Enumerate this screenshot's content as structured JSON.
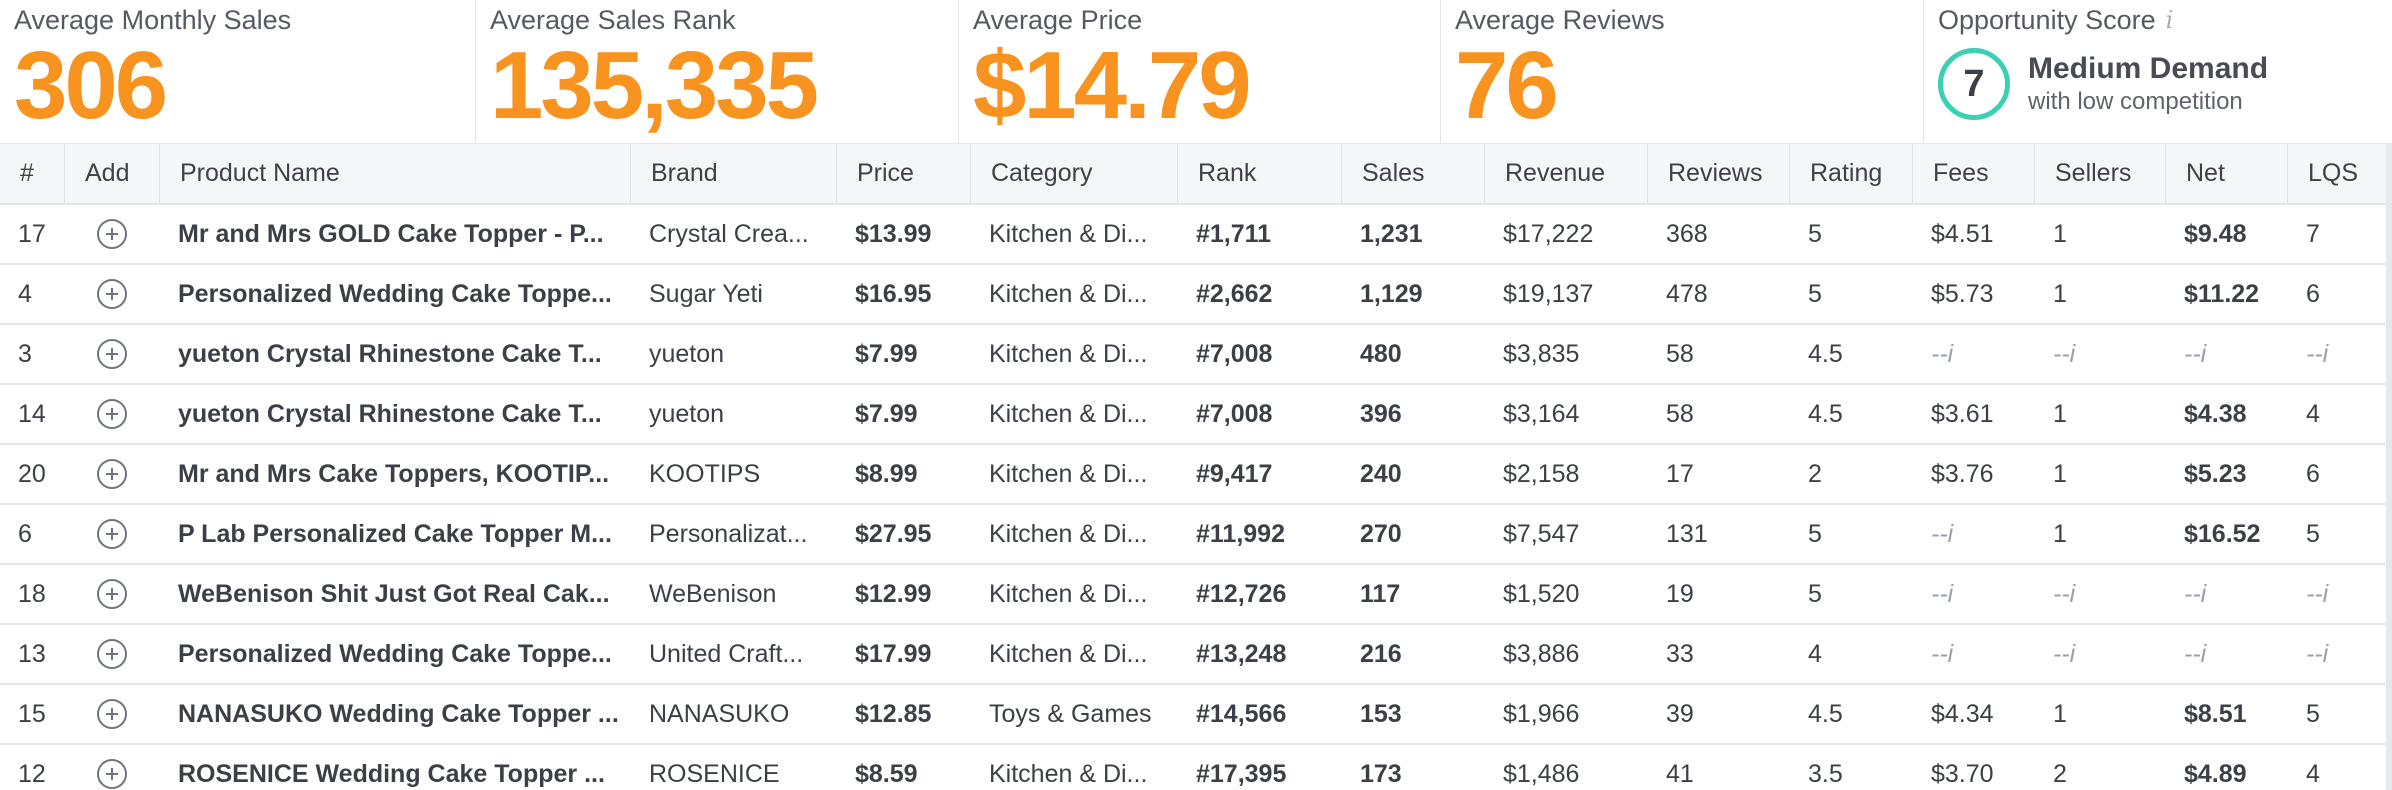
{
  "stats": {
    "avg_monthly_sales": {
      "label": "Average Monthly Sales",
      "value": "306"
    },
    "avg_sales_rank": {
      "label": "Average Sales Rank",
      "value": "135,335"
    },
    "avg_price": {
      "label": "Average Price",
      "value": "$14.79"
    },
    "avg_reviews": {
      "label": "Average Reviews",
      "value": "76"
    },
    "opportunity": {
      "label": "Opportunity Score",
      "info": "i",
      "score": "7",
      "demand": "Medium Demand",
      "competition": "with low competition",
      "ring_color": "#3bcfb4"
    }
  },
  "colors": {
    "accent": "#f7931e"
  },
  "icons": {
    "add": "plus-circle-icon",
    "info": "info-icon"
  },
  "table": {
    "headers": [
      "#",
      "Add",
      "Product Name",
      "Brand",
      "Price",
      "Category",
      "Rank",
      "Sales",
      "Revenue",
      "Reviews",
      "Rating",
      "Fees",
      "Sellers",
      "Net",
      "LQS"
    ],
    "rows": [
      {
        "num": "17",
        "name": "Mr and Mrs GOLD Cake Topper - P...",
        "brand": "Crystal Crea...",
        "price": "$13.99",
        "category": "Kitchen & Di...",
        "rank": "#1,711",
        "sales": "1,231",
        "revenue": "$17,222",
        "reviews": "368",
        "rating": "5",
        "fees": "$4.51",
        "sellers": "1",
        "net": "$9.48",
        "lqs": "7"
      },
      {
        "num": "4",
        "name": "Personalized Wedding Cake Toppe...",
        "brand": "Sugar Yeti",
        "price": "$16.95",
        "category": "Kitchen & Di...",
        "rank": "#2,662",
        "sales": "1,129",
        "revenue": "$19,137",
        "reviews": "478",
        "rating": "5",
        "fees": "$5.73",
        "sellers": "1",
        "net": "$11.22",
        "lqs": "6"
      },
      {
        "num": "3",
        "name": "yueton Crystal Rhinestone Cake T...",
        "brand": "yueton",
        "price": "$7.99",
        "category": "Kitchen & Di...",
        "rank": "#7,008",
        "sales": "480",
        "revenue": "$3,835",
        "reviews": "58",
        "rating": "4.5",
        "fees": "--i",
        "sellers": "--i",
        "net": "--i",
        "lqs": "--i"
      },
      {
        "num": "14",
        "name": "yueton Crystal Rhinestone Cake T...",
        "brand": "yueton",
        "price": "$7.99",
        "category": "Kitchen & Di...",
        "rank": "#7,008",
        "sales": "396",
        "revenue": "$3,164",
        "reviews": "58",
        "rating": "4.5",
        "fees": "$3.61",
        "sellers": "1",
        "net": "$4.38",
        "lqs": "4"
      },
      {
        "num": "20",
        "name": "Mr and Mrs Cake Toppers, KOOTIP...",
        "brand": "KOOTIPS",
        "price": "$8.99",
        "category": "Kitchen & Di...",
        "rank": "#9,417",
        "sales": "240",
        "revenue": "$2,158",
        "reviews": "17",
        "rating": "2",
        "fees": "$3.76",
        "sellers": "1",
        "net": "$5.23",
        "lqs": "6"
      },
      {
        "num": "6",
        "name": "P Lab Personalized Cake Topper M...",
        "brand": "Personalizat...",
        "price": "$27.95",
        "category": "Kitchen & Di...",
        "rank": "#11,992",
        "sales": "270",
        "revenue": "$7,547",
        "reviews": "131",
        "rating": "5",
        "fees": "--i",
        "sellers": "1",
        "net": "$16.52",
        "lqs": "5"
      },
      {
        "num": "18",
        "name": "WeBenison Shit Just Got Real Cak...",
        "brand": "WeBenison",
        "price": "$12.99",
        "category": "Kitchen & Di...",
        "rank": "#12,726",
        "sales": "117",
        "revenue": "$1,520",
        "reviews": "19",
        "rating": "5",
        "fees": "--i",
        "sellers": "--i",
        "net": "--i",
        "lqs": "--i"
      },
      {
        "num": "13",
        "name": "Personalized Wedding Cake Toppe...",
        "brand": "United Craft...",
        "price": "$17.99",
        "category": "Kitchen & Di...",
        "rank": "#13,248",
        "sales": "216",
        "revenue": "$3,886",
        "reviews": "33",
        "rating": "4",
        "fees": "--i",
        "sellers": "--i",
        "net": "--i",
        "lqs": "--i"
      },
      {
        "num": "15",
        "name": "NANASUKO Wedding Cake Topper ...",
        "brand": "NANASUKO",
        "price": "$12.85",
        "category": "Toys & Games",
        "rank": "#14,566",
        "sales": "153",
        "revenue": "$1,966",
        "reviews": "39",
        "rating": "4.5",
        "fees": "$4.34",
        "sellers": "1",
        "net": "$8.51",
        "lqs": "5"
      },
      {
        "num": "12",
        "name": "ROSENICE Wedding Cake Topper ...",
        "brand": "ROSENICE",
        "price": "$8.59",
        "category": "Kitchen & Di...",
        "rank": "#17,395",
        "sales": "173",
        "revenue": "$1,486",
        "reviews": "41",
        "rating": "3.5",
        "fees": "$3.70",
        "sellers": "2",
        "net": "$4.89",
        "lqs": "4"
      }
    ]
  }
}
